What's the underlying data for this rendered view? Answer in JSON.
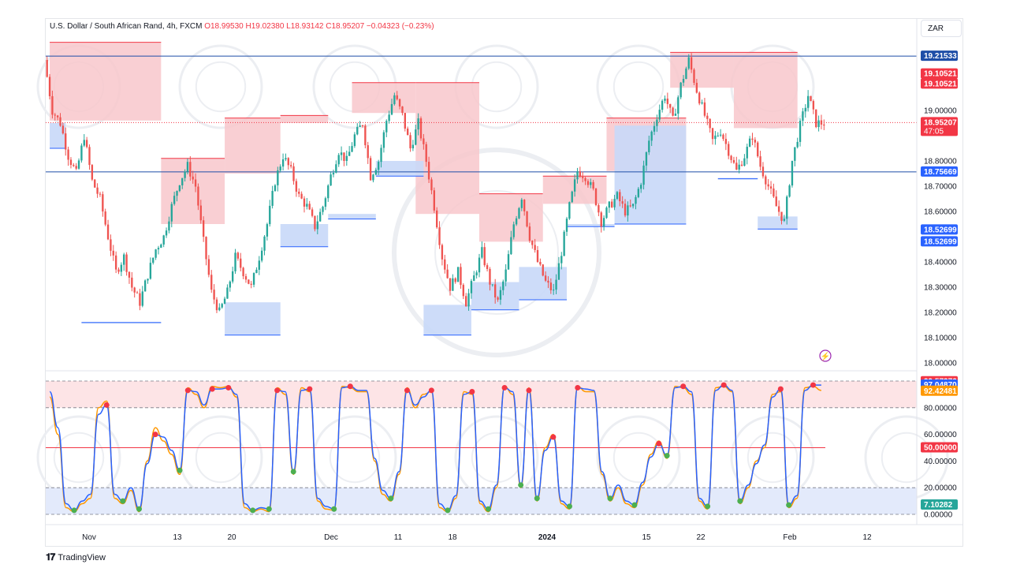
{
  "legend": {
    "symbol": "U.S. Dollar / South African Rand, 4h, FXCM",
    "ohlc": "O18.99530 H19.02380 L18.93142 C18.95207 −0.04323 (−0.23%)"
  },
  "currency": "ZAR",
  "brand": "TradingView",
  "colors": {
    "up": "#26a69a",
    "down": "#ef5350",
    "supply_zone": "#f8c7cb",
    "demand_zone": "#c8d8f8",
    "k_line": "#2962ff",
    "d_line": "#ff9800",
    "overbought_band": "#fde4e6",
    "oversold_band": "#e3eafb"
  },
  "chart_data": [
    {
      "type": "candlestick",
      "title": "U.S. Dollar / South African Rand, 4h, FXCM",
      "ylim": [
        18.0,
        19.25
      ],
      "y_ticks": [
        "18.00000",
        "18.10000",
        "18.20000",
        "18.30000",
        "18.40000",
        "18.60000",
        "18.70000",
        "18.80000",
        "19.00000"
      ],
      "x_tick_labels": [
        "Nov",
        "13",
        "20",
        "Dec",
        "11",
        "18",
        "2024",
        "15",
        "22",
        "Feb",
        "12"
      ],
      "price_labels": [
        {
          "label": "19.21533",
          "value": 19.21533,
          "color": "#1e4ea7"
        },
        {
          "label": "19.10521",
          "value": 19.145,
          "color": "#f23645"
        },
        {
          "label": "19.10521",
          "value": 19.10521,
          "color": "#f23645"
        },
        {
          "label": "18.95207",
          "value": 18.95207,
          "color": "#f23645",
          "countdown": "47:05"
        },
        {
          "label": "18.75669",
          "value": 18.75669,
          "color": "#2962ff"
        },
        {
          "label": "18.52699",
          "value": 18.52699,
          "color": "#2962ff"
        },
        {
          "label": "18.52699",
          "value": 18.48,
          "color": "#2962ff"
        }
      ],
      "horizontal_lines": [
        19.21533,
        18.75669
      ],
      "current_price": 18.95207,
      "close_path": [
        [
          0,
          19.2
        ],
        [
          1,
          19.0
        ],
        [
          2,
          18.95
        ],
        [
          3,
          18.82
        ],
        [
          4,
          18.75
        ],
        [
          5,
          18.9
        ],
        [
          6,
          18.72
        ],
        [
          7,
          18.65
        ],
        [
          8,
          18.5
        ],
        [
          9,
          18.36
        ],
        [
          10,
          18.42
        ],
        [
          11,
          18.3
        ],
        [
          12,
          18.24
        ],
        [
          13,
          18.35
        ],
        [
          14,
          18.45
        ],
        [
          15,
          18.5
        ],
        [
          16,
          18.62
        ],
        [
          17,
          18.72
        ],
        [
          18,
          18.78
        ],
        [
          19,
          18.7
        ],
        [
          20,
          18.48
        ],
        [
          21,
          18.28
        ],
        [
          22,
          18.2
        ],
        [
          23,
          18.28
        ],
        [
          24,
          18.42
        ],
        [
          25,
          18.36
        ],
        [
          26,
          18.3
        ],
        [
          27,
          18.42
        ],
        [
          28,
          18.55
        ],
        [
          29,
          18.72
        ],
        [
          30,
          18.82
        ],
        [
          31,
          18.76
        ],
        [
          32,
          18.66
        ],
        [
          33,
          18.62
        ],
        [
          34,
          18.54
        ],
        [
          35,
          18.62
        ],
        [
          36,
          18.74
        ],
        [
          37,
          18.84
        ],
        [
          38,
          18.8
        ],
        [
          39,
          18.9
        ],
        [
          40,
          18.95
        ],
        [
          41,
          18.74
        ],
        [
          42,
          18.8
        ],
        [
          43,
          18.96
        ],
        [
          44,
          19.06
        ],
        [
          45,
          18.98
        ],
        [
          46,
          18.85
        ],
        [
          47,
          18.95
        ],
        [
          48,
          18.8
        ],
        [
          49,
          18.62
        ],
        [
          50,
          18.42
        ],
        [
          51,
          18.3
        ],
        [
          52,
          18.36
        ],
        [
          53,
          18.24
        ],
        [
          54,
          18.34
        ],
        [
          55,
          18.44
        ],
        [
          56,
          18.32
        ],
        [
          57,
          18.24
        ],
        [
          58,
          18.36
        ],
        [
          59,
          18.55
        ],
        [
          60,
          18.66
        ],
        [
          61,
          18.5
        ],
        [
          62,
          18.4
        ],
        [
          63,
          18.32
        ],
        [
          64,
          18.28
        ],
        [
          65,
          18.44
        ],
        [
          66,
          18.62
        ],
        [
          67,
          18.76
        ],
        [
          68,
          18.74
        ],
        [
          69,
          18.68
        ],
        [
          70,
          18.56
        ],
        [
          71,
          18.62
        ],
        [
          72,
          18.66
        ],
        [
          73,
          18.6
        ],
        [
          74,
          18.62
        ],
        [
          75,
          18.72
        ],
        [
          76,
          18.88
        ],
        [
          77,
          18.98
        ],
        [
          78,
          19.06
        ],
        [
          79,
          18.96
        ],
        [
          80,
          19.1
        ],
        [
          81,
          19.2
        ],
        [
          82,
          19.08
        ],
        [
          83,
          18.98
        ],
        [
          84,
          18.88
        ],
        [
          85,
          18.92
        ],
        [
          86,
          18.84
        ],
        [
          87,
          18.76
        ],
        [
          88,
          18.82
        ],
        [
          89,
          18.9
        ],
        [
          90,
          18.78
        ],
        [
          91,
          18.7
        ],
        [
          92,
          18.62
        ],
        [
          93,
          18.56
        ],
        [
          94,
          18.8
        ],
        [
          95,
          18.94
        ],
        [
          96,
          19.06
        ],
        [
          97,
          18.95
        ]
      ],
      "supply_zones": [
        [
          0,
          14,
          18.96,
          19.27
        ],
        [
          14,
          22,
          18.55,
          18.81
        ],
        [
          22,
          29,
          18.75,
          18.97
        ],
        [
          29,
          35,
          18.95,
          18.98
        ],
        [
          38,
          46,
          18.99,
          19.11
        ],
        [
          46,
          54,
          18.59,
          19.11
        ],
        [
          54,
          62,
          18.48,
          18.67
        ],
        [
          62,
          70,
          18.63,
          18.74
        ],
        [
          70,
          80,
          18.76,
          18.97
        ],
        [
          78,
          86,
          19.09,
          19.23
        ],
        [
          86,
          94,
          18.93,
          19.23
        ]
      ],
      "demand_zones": [
        [
          0,
          2,
          18.85,
          18.95
        ],
        [
          4,
          14,
          18.16,
          18.16
        ],
        [
          22,
          29,
          18.11,
          18.24
        ],
        [
          29,
          35,
          18.46,
          18.55
        ],
        [
          35,
          41,
          18.57,
          18.59
        ],
        [
          41,
          47,
          18.74,
          18.8
        ],
        [
          47,
          53,
          18.11,
          18.23
        ],
        [
          53,
          59,
          18.21,
          18.32
        ],
        [
          59,
          65,
          18.25,
          18.38
        ],
        [
          65,
          71,
          18.54,
          18.55
        ],
        [
          71,
          80,
          18.55,
          18.94
        ],
        [
          84,
          89,
          18.73,
          18.73
        ],
        [
          89,
          94,
          18.53,
          18.58
        ]
      ]
    },
    {
      "type": "line",
      "title": "",
      "ylim": [
        0,
        100
      ],
      "y_ticks": [
        "0.00000",
        "20.00000",
        "40.00000",
        "60.00000",
        "80.00000"
      ],
      "bands": [
        {
          "from": 80,
          "to": 100,
          "name": "overbought"
        },
        {
          "from": 0,
          "to": 20,
          "name": "oversold"
        }
      ],
      "mid_line": 50,
      "value_labels": [
        {
          "label": "99.57376",
          "value": 99.57376,
          "color": "#f23645"
        },
        {
          "label": "97.04870",
          "value": 97.0487,
          "color": "#2962ff"
        },
        {
          "label": "92.42481",
          "value": 92.42481,
          "color": "#ff9800"
        },
        {
          "label": "50.00000",
          "value": 50,
          "color": "#f23645"
        },
        {
          "label": "7.10282",
          "value": 7.10282,
          "color": "#26a69a"
        }
      ],
      "series": [
        {
          "name": "",
          "values": [
            88,
            60,
            5,
            2,
            8,
            12,
            80,
            85,
            12,
            8,
            18,
            2,
            40,
            65,
            55,
            45,
            30,
            95,
            90,
            80,
            96,
            95,
            96,
            88,
            5,
            2,
            4,
            2,
            95,
            90,
            30,
            95,
            92,
            10,
            4,
            3,
            96,
            95,
            92,
            92,
            40,
            15,
            10,
            30,
            95,
            80,
            90,
            92,
            5,
            2,
            12,
            92,
            90,
            8,
            2,
            20,
            96,
            90,
            20,
            95,
            10,
            50,
            60,
            8,
            4,
            96,
            92,
            92,
            30,
            10,
            20,
            8,
            5,
            22,
            45,
            55,
            42,
            96,
            95,
            90,
            10,
            4,
            95,
            96,
            92,
            8,
            20,
            40,
            50,
            90,
            92,
            5,
            12,
            95,
            96,
            93
          ]
        },
        {
          "name": "",
          "values": [
            92,
            65,
            8,
            3,
            10,
            15,
            75,
            82,
            15,
            10,
            20,
            4,
            38,
            60,
            58,
            48,
            33,
            93,
            92,
            82,
            94,
            94,
            95,
            90,
            8,
            3,
            5,
            4,
            93,
            92,
            32,
            93,
            94,
            12,
            6,
            4,
            95,
            96,
            93,
            93,
            42,
            18,
            12,
            32,
            93,
            82,
            88,
            93,
            8,
            3,
            14,
            90,
            92,
            10,
            4,
            22,
            95,
            92,
            22,
            93,
            12,
            48,
            58,
            10,
            6,
            95,
            94,
            93,
            32,
            12,
            22,
            10,
            7,
            24,
            43,
            53,
            44,
            95,
            96,
            92,
            12,
            6,
            93,
            97,
            93,
            10,
            22,
            38,
            52,
            88,
            94,
            7,
            14,
            93,
            97,
            97
          ]
        }
      ]
    }
  ]
}
